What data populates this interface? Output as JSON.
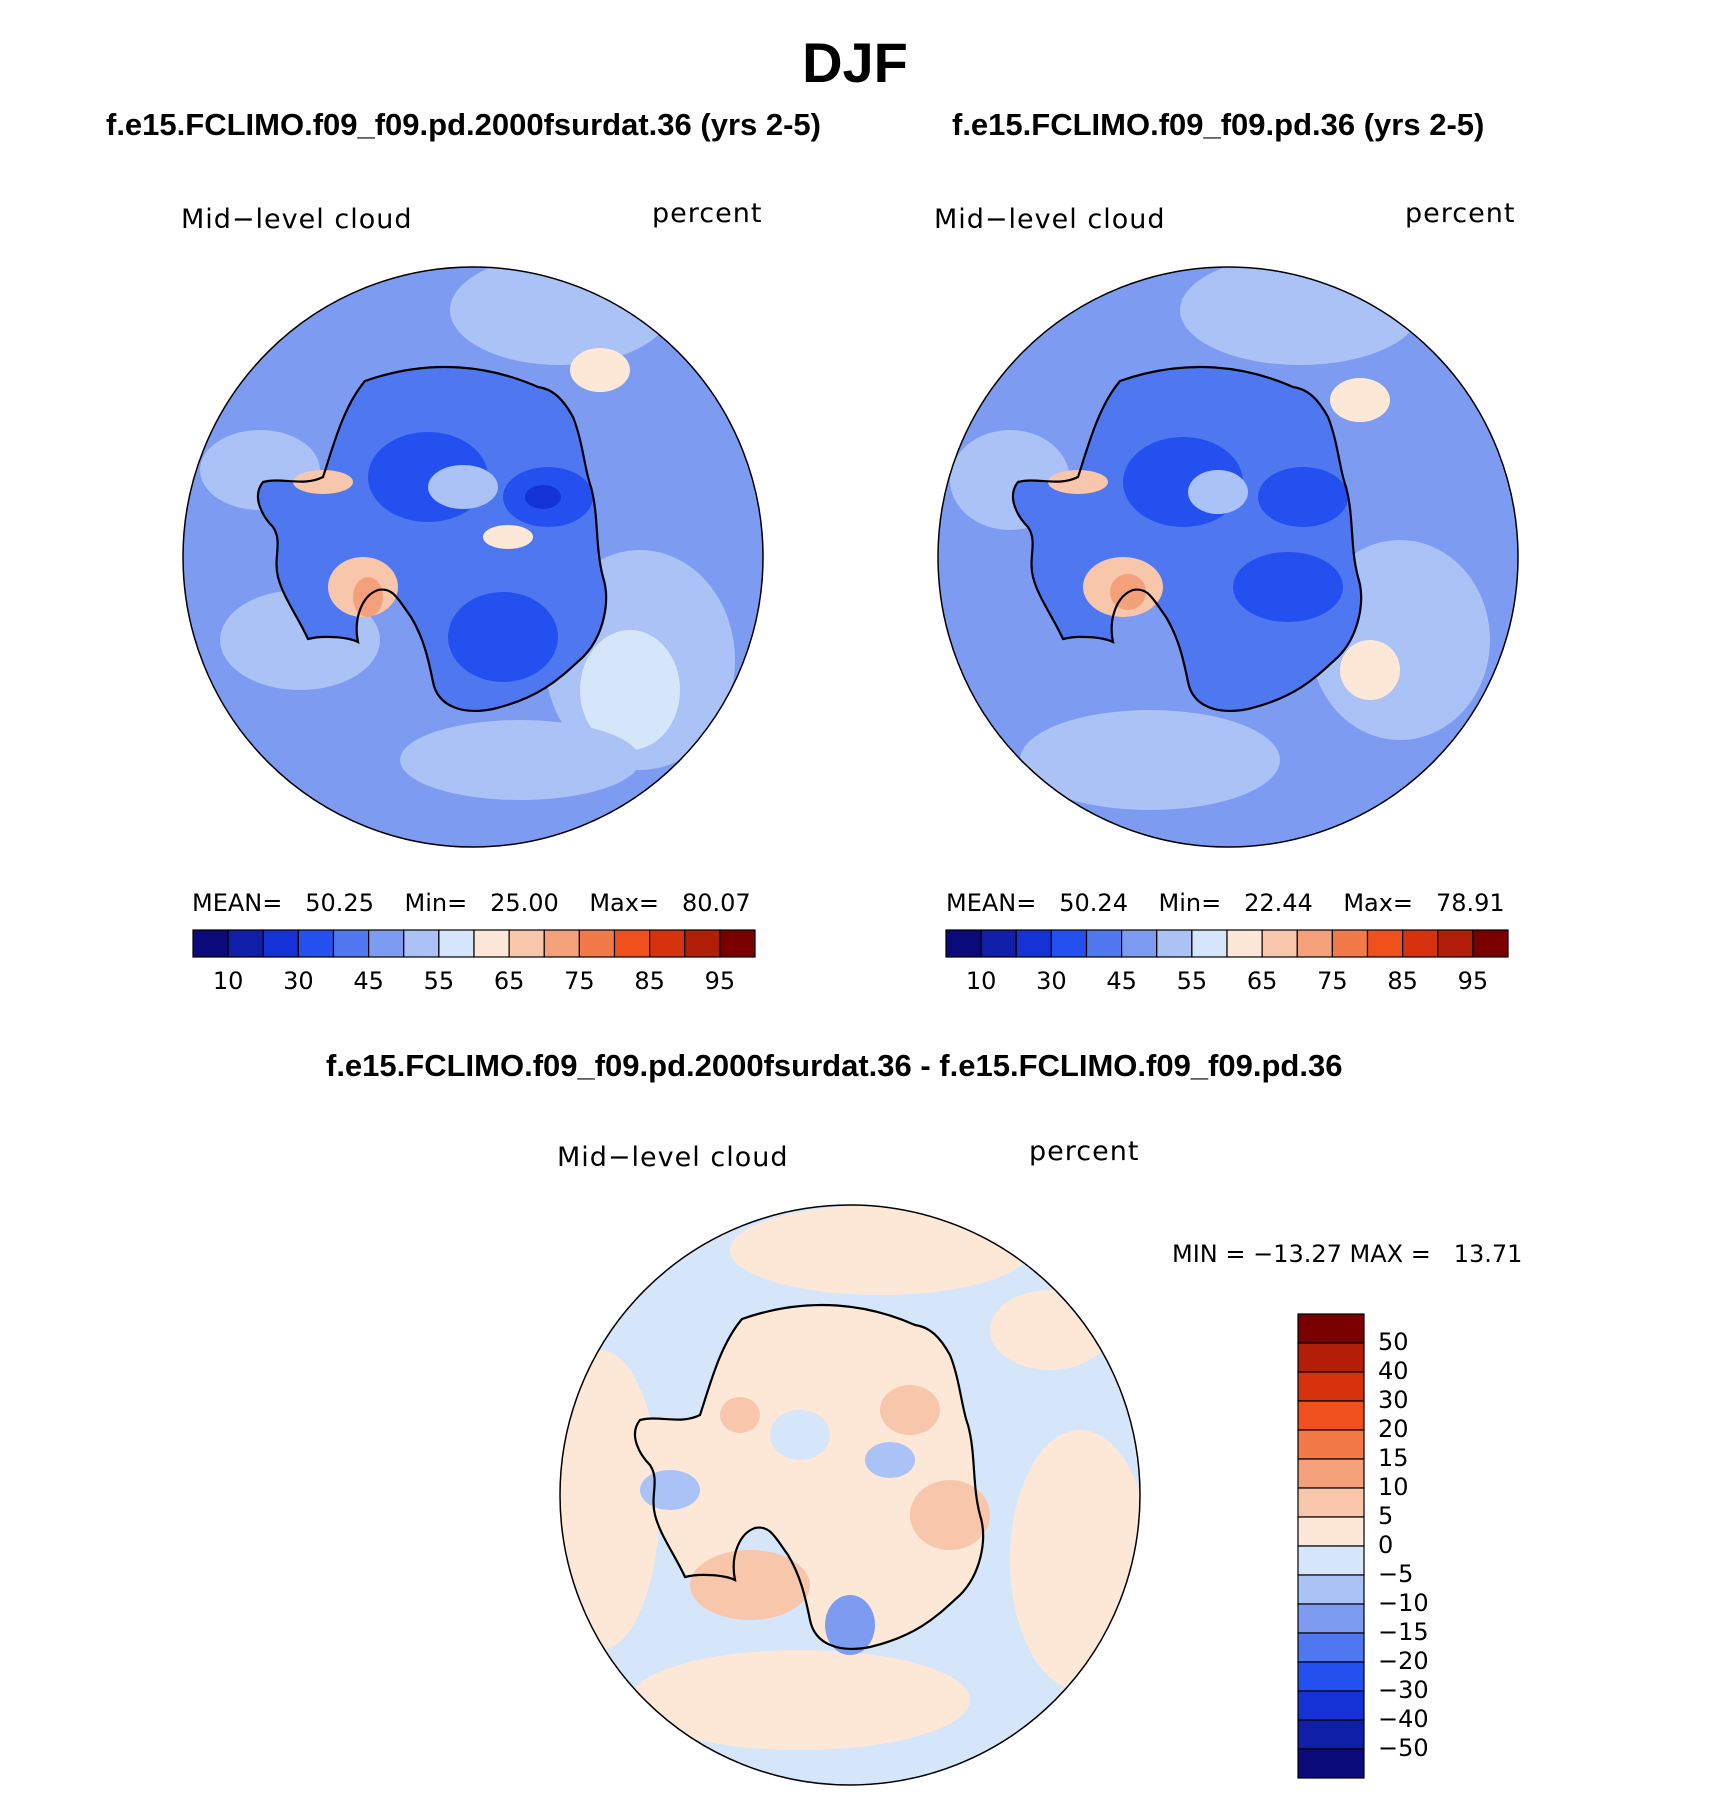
{
  "page_title": "DJF",
  "panels": [
    {
      "case_title": "f.e15.FCLIMO.f09_f09.pd.2000fsurdat.36 (yrs 2-5)",
      "variable_label": "Mid−level cloud",
      "units_label": "percent",
      "stats": {
        "mean_label": "MEAN=",
        "mean": "50.25",
        "min_label": "Min=",
        "min": "25.00",
        "max_label": "Max=",
        "max": "80.07"
      }
    },
    {
      "case_title": "f.e15.FCLIMO.f09_f09.pd.36 (yrs 2-5)",
      "variable_label": "Mid−level cloud",
      "units_label": "percent",
      "stats": {
        "mean_label": "MEAN=",
        "mean": "50.24",
        "min_label": "Min=",
        "min": "22.44",
        "max_label": "Max=",
        "max": "78.91"
      }
    }
  ],
  "diff_panel": {
    "case_title": "f.e15.FCLIMO.f09_f09.pd.2000fsurdat.36 - f.e15.FCLIMO.f09_f09.pd.36",
    "variable_label": "Mid−level cloud",
    "units_label": "percent",
    "minmax": "MIN = −13.27 MAX =   13.71"
  },
  "colorbar_abs": {
    "colors": [
      "#0a0a7a",
      "#0f1fa8",
      "#1432d6",
      "#2450f0",
      "#4f78f0",
      "#7d9bf0",
      "#aac2f5",
      "#d6e6fa",
      "#fde8d8",
      "#f8c6aa",
      "#f4a07a",
      "#f27a48",
      "#f0501e",
      "#d6320e",
      "#b21e08",
      "#7a0000"
    ],
    "tick_labels": [
      "10",
      "30",
      "45",
      "55",
      "65",
      "75",
      "85",
      "95"
    ]
  },
  "colorbar_diff": {
    "colors": [
      "#0a0a7a",
      "#0f1fa8",
      "#1432d6",
      "#2450f0",
      "#4f78f0",
      "#7d9bf0",
      "#aac2f5",
      "#d6e6fa",
      "#fde8d8",
      "#f8c6aa",
      "#f4a07a",
      "#f27a48",
      "#f0501e",
      "#d6320e",
      "#b21e08",
      "#7a0000"
    ],
    "tick_labels": [
      "50",
      "40",
      "30",
      "20",
      "15",
      "10",
      "5",
      "0",
      "−5",
      "−10",
      "−15",
      "−20",
      "−30",
      "−40",
      "−50"
    ]
  },
  "colors": {
    "ocean_background": "#7d9bf0",
    "ocean_light": "#aac2f5",
    "diff_background": "#d6e6fa",
    "diff_positive": "#fde8d8",
    "coast_line": "#000000"
  }
}
